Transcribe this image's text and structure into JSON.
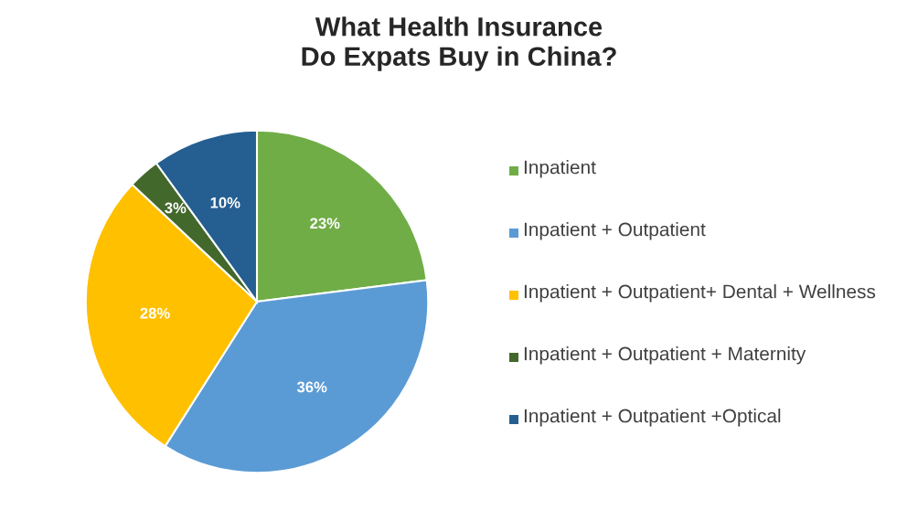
{
  "chart_data": {
    "type": "pie",
    "title": "What Health Insurance\nDo Expats Buy in China?",
    "categories": [
      "Inpatient",
      "Inpatient + Outpatient",
      "Inpatient + Outpatient+ Dental + Wellness",
      "Inpatient + Outpatient + Maternity",
      "Inpatient + Outpatient +Optical"
    ],
    "values": [
      23,
      36,
      28,
      3,
      10
    ],
    "colors": [
      "#70ad47",
      "#5b9bd5",
      "#ffc000",
      "#43682b",
      "#255e91"
    ],
    "value_labels": [
      "23%",
      "36%",
      "28%",
      "3%",
      "10%"
    ],
    "legend": "right"
  }
}
